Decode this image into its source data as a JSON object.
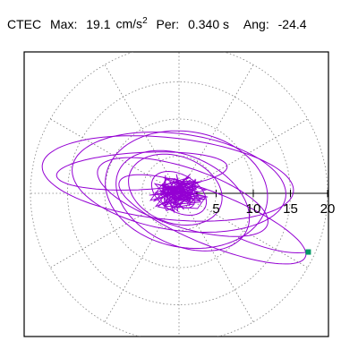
{
  "header": {
    "station": "CTEC",
    "max_label": "Max:",
    "max_value": "19.1",
    "max_unit": "cm/s",
    "max_unit_exp": "2",
    "per_label": "Per:",
    "per_value": "0.340 s",
    "ang_label": "Ang:",
    "ang_value": "-24.4"
  },
  "chart_data": {
    "type": "polar-orbit",
    "title": "",
    "units": "cm/s²",
    "max": 19.1,
    "period_s": 0.34,
    "angle_deg": -24.4,
    "r_ticks": [
      5,
      10,
      15,
      20
    ],
    "r_tick_labels": [
      "5",
      "10",
      "15",
      "20"
    ],
    "rlim": [
      0,
      20
    ],
    "spoke_step_deg": 30,
    "grid": true,
    "colors": {
      "trace": "#9400d3",
      "marker": "#009966",
      "grid": "#808080",
      "axis": "#000000"
    },
    "end_point": {
      "x": 17.4,
      "y": -7.9
    },
    "orbits": [
      {
        "cx": -1.5,
        "cy": 2.0,
        "a": 17.0,
        "b": 5.5,
        "rot_deg": -6
      },
      {
        "cx": 0.0,
        "cy": 1.5,
        "a": 14.5,
        "b": 6.5,
        "rot_deg": -8
      },
      {
        "cx": 1.0,
        "cy": 0.5,
        "a": 11.0,
        "b": 7.8,
        "rot_deg": -10
      },
      {
        "cx": 0.5,
        "cy": -1.0,
        "a": 9.5,
        "b": 6.0,
        "rot_deg": -25
      },
      {
        "cx": 0.5,
        "cy": -0.5,
        "a": 12.0,
        "b": 4.0,
        "rot_deg": -18
      },
      {
        "cx": -0.5,
        "cy": 0.5,
        "a": 6.5,
        "b": 4.5,
        "rot_deg": -20
      },
      {
        "cx": 0.0,
        "cy": 0.0,
        "a": 4.0,
        "b": 2.5,
        "rot_deg": -30
      },
      {
        "cx": 0.0,
        "cy": 0.0,
        "a": 2.5,
        "b": 1.5,
        "rot_deg": -40
      },
      {
        "cx": 4.5,
        "cy": -3.5,
        "a": 13.5,
        "b": 3.5,
        "rot_deg": -22
      },
      {
        "cx": -5.0,
        "cy": 3.0,
        "a": 11.5,
        "b": 2.5,
        "rot_deg": 3
      }
    ]
  }
}
